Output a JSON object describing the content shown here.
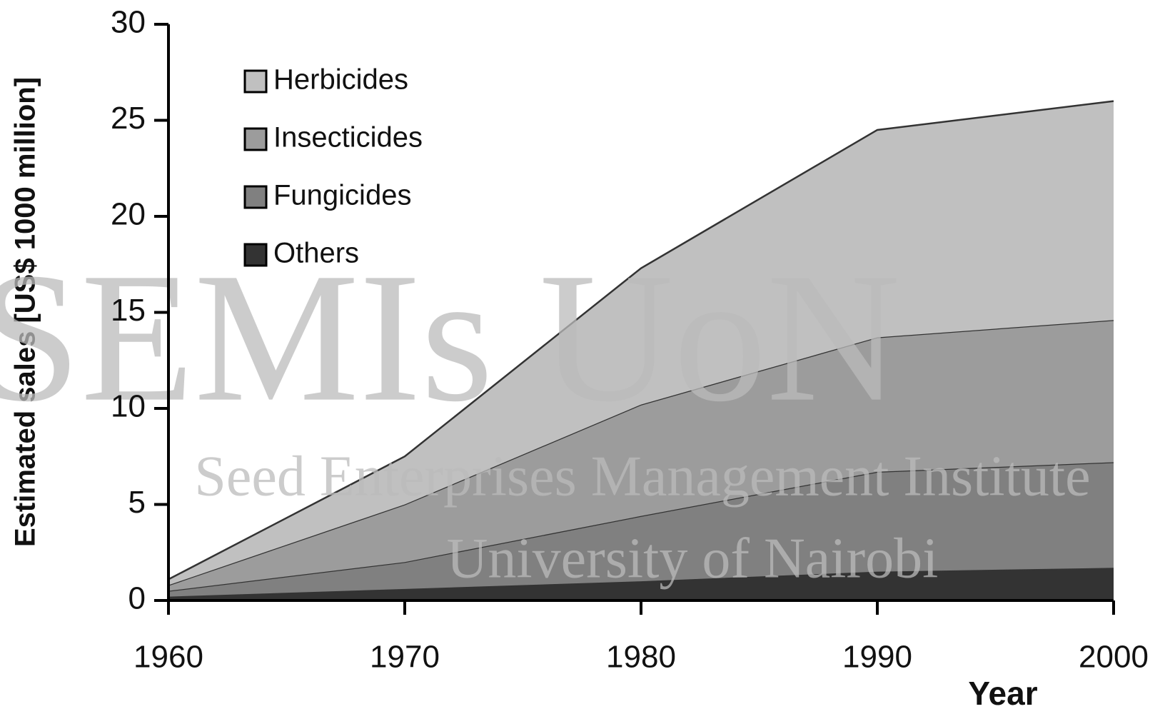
{
  "chart_data": {
    "type": "area",
    "y_label": "Estimated sales [US$ 1000 million]",
    "x_label": "Year",
    "x": [
      1960,
      1970,
      1980,
      1990,
      2000
    ],
    "series": [
      {
        "name": "Herbicides",
        "color": "#c0c0c0",
        "values": [
          0.3,
          2.5,
          7.1,
          10.8,
          11.4
        ]
      },
      {
        "name": "Insecticides",
        "color": "#9c9c9c",
        "values": [
          0.3,
          3.0,
          5.8,
          7.0,
          7.4
        ]
      },
      {
        "name": "Fungicides",
        "color": "#808080",
        "values": [
          0.3,
          1.4,
          3.4,
          5.2,
          5.5
        ]
      },
      {
        "name": "Others",
        "color": "#333333",
        "values": [
          0.2,
          0.6,
          1.0,
          1.5,
          1.7
        ]
      }
    ],
    "stacked": true,
    "xlim": [
      1960,
      2000
    ],
    "xticks": [
      1960,
      1970,
      1980,
      1990,
      2000
    ],
    "ylim": [
      0,
      30
    ],
    "yticks": [
      0,
      5,
      10,
      15,
      20,
      25,
      30
    ],
    "legend": "upper left",
    "watermark": [
      "SEMIs UoN",
      "Seed Enterprises Management Institute",
      "University of Nairobi"
    ]
  }
}
